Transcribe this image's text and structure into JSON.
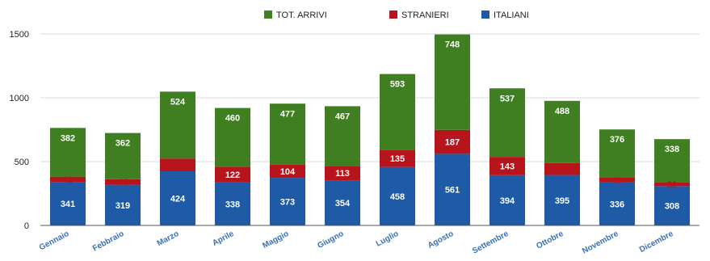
{
  "chart_data": {
    "type": "bar",
    "stacked": true,
    "title": "",
    "xlabel": "",
    "ylabel": "",
    "ylim": [
      0,
      1500
    ],
    "yticks": [
      0,
      500,
      1000,
      1500
    ],
    "grid": true,
    "legend_position": "top",
    "categories": [
      "Gennaio",
      "Febbraio",
      "Marzo",
      "Aprile",
      "Maggio",
      "Giugno",
      "Luglio",
      "Agosto",
      "Settembre",
      "Ottobre",
      "Novembre",
      "Dicembre"
    ],
    "series": [
      {
        "name": "ITALIANI",
        "color": "#1f5aa6",
        "values": [
          341,
          319,
          424,
          338,
          373,
          354,
          458,
          561,
          394,
          395,
          336,
          308
        ]
      },
      {
        "name": "STRANIERI",
        "color": "#b8141b",
        "values": [
          41,
          43,
          100,
          122,
          104,
          113,
          135,
          187,
          143,
          93,
          40,
          30
        ]
      },
      {
        "name": "TOT. ARRIVI",
        "color": "#3f7f22",
        "values": [
          382,
          362,
          524,
          460,
          477,
          467,
          593,
          748,
          537,
          488,
          376,
          338
        ]
      }
    ],
    "legend_order": [
      "TOT. ARRIVI",
      "STRANIERI",
      "ITALIANI"
    ]
  }
}
